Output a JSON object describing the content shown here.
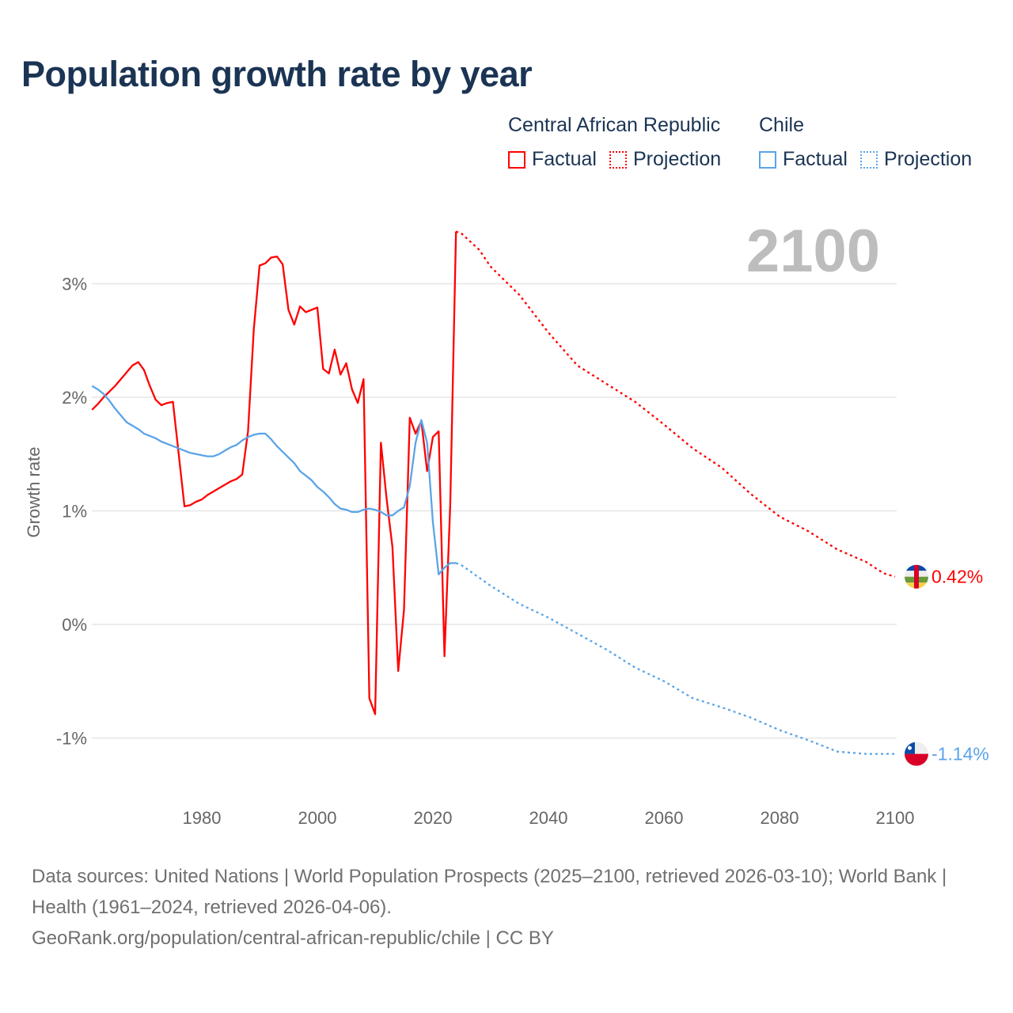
{
  "chart_data": {
    "type": "line",
    "title": "Population growth rate by year",
    "ylabel": "Growth rate",
    "xlabel": "",
    "xlim": [
      1961,
      2100
    ],
    "ylim": [
      -1.4,
      3.6
    ],
    "x_ticks": [
      1980,
      2000,
      2020,
      2040,
      2060,
      2080,
      2100
    ],
    "x_tick_labels": [
      "1980",
      "2000",
      "2020",
      "2040",
      "2060",
      "2080",
      "2100"
    ],
    "y_ticks": [
      -1,
      0,
      1,
      2,
      3
    ],
    "y_tick_labels": [
      "-1%",
      "0%",
      "1%",
      "2%",
      "3%"
    ],
    "grid": true,
    "current_year_label": "2100",
    "legend_placement": "top-right",
    "series": [
      {
        "name": "Central African Republic",
        "color": "#ff0000",
        "end_label": "0.42%",
        "factual_label": "Factual",
        "projection_label": "Projection",
        "factual": {
          "start_year": 1961,
          "values": [
            1.89,
            1.94,
            2.0,
            2.05,
            2.1,
            2.16,
            2.22,
            2.28,
            2.31,
            2.24,
            2.1,
            1.98,
            1.93,
            1.95,
            1.96,
            1.5,
            1.04,
            1.05,
            1.08,
            1.1,
            1.14,
            1.17,
            1.2,
            1.23,
            1.26,
            1.28,
            1.32,
            1.7,
            2.6,
            3.16,
            3.18,
            3.23,
            3.24,
            3.17,
            2.77,
            2.64,
            2.8,
            2.75,
            2.77,
            2.79,
            2.25,
            2.21,
            2.42,
            2.2,
            2.3,
            2.07,
            1.95,
            2.16,
            -0.65,
            -0.79,
            1.6,
            1.1,
            0.68,
            -0.41,
            0.13,
            1.82,
            1.68,
            1.79,
            1.35,
            1.65,
            1.7,
            -0.28,
            1.05,
            3.46
          ]
        },
        "projection": {
          "years": [
            2024,
            2025,
            2028,
            2030,
            2035,
            2040,
            2045,
            2050,
            2055,
            2060,
            2065,
            2070,
            2075,
            2080,
            2085,
            2090,
            2095,
            2098,
            2100
          ],
          "values": [
            3.46,
            3.44,
            3.3,
            3.15,
            2.9,
            2.57,
            2.28,
            2.12,
            1.96,
            1.76,
            1.55,
            1.38,
            1.15,
            0.95,
            0.82,
            0.66,
            0.55,
            0.45,
            0.42
          ]
        }
      },
      {
        "name": "Chile",
        "color": "#5ba4e8",
        "end_label": "-1.14%",
        "factual_label": "Factual",
        "projection_label": "Projection",
        "factual": {
          "start_year": 1961,
          "values": [
            2.1,
            2.07,
            2.03,
            1.97,
            1.9,
            1.84,
            1.78,
            1.75,
            1.72,
            1.68,
            1.66,
            1.64,
            1.61,
            1.59,
            1.57,
            1.55,
            1.53,
            1.51,
            1.5,
            1.49,
            1.48,
            1.48,
            1.5,
            1.53,
            1.56,
            1.58,
            1.62,
            1.65,
            1.67,
            1.68,
            1.68,
            1.63,
            1.57,
            1.52,
            1.47,
            1.42,
            1.35,
            1.31,
            1.27,
            1.21,
            1.17,
            1.12,
            1.06,
            1.02,
            1.01,
            0.99,
            0.99,
            1.01,
            1.02,
            1.01,
            0.99,
            0.96,
            0.96,
            1.0,
            1.03,
            1.22,
            1.6,
            1.8,
            1.6,
            0.9,
            0.44,
            0.5,
            0.54,
            0.54
          ]
        },
        "projection": {
          "years": [
            2024,
            2025,
            2030,
            2035,
            2040,
            2045,
            2050,
            2055,
            2060,
            2065,
            2070,
            2075,
            2080,
            2085,
            2090,
            2095,
            2100
          ],
          "values": [
            0.54,
            0.52,
            0.34,
            0.18,
            0.06,
            -0.08,
            -0.22,
            -0.38,
            -0.5,
            -0.65,
            -0.73,
            -0.82,
            -0.93,
            -1.02,
            -1.12,
            -1.14,
            -1.14
          ]
        }
      }
    ]
  },
  "footer": {
    "sources": "Data sources: United Nations | World Population Prospects (2025–2100, retrieved 2026-03-10); World Bank | Health (1961–2024, retrieved 2026-04-06).",
    "credit": "GeoRank.org/population/central-african-republic/chile | CC BY"
  }
}
